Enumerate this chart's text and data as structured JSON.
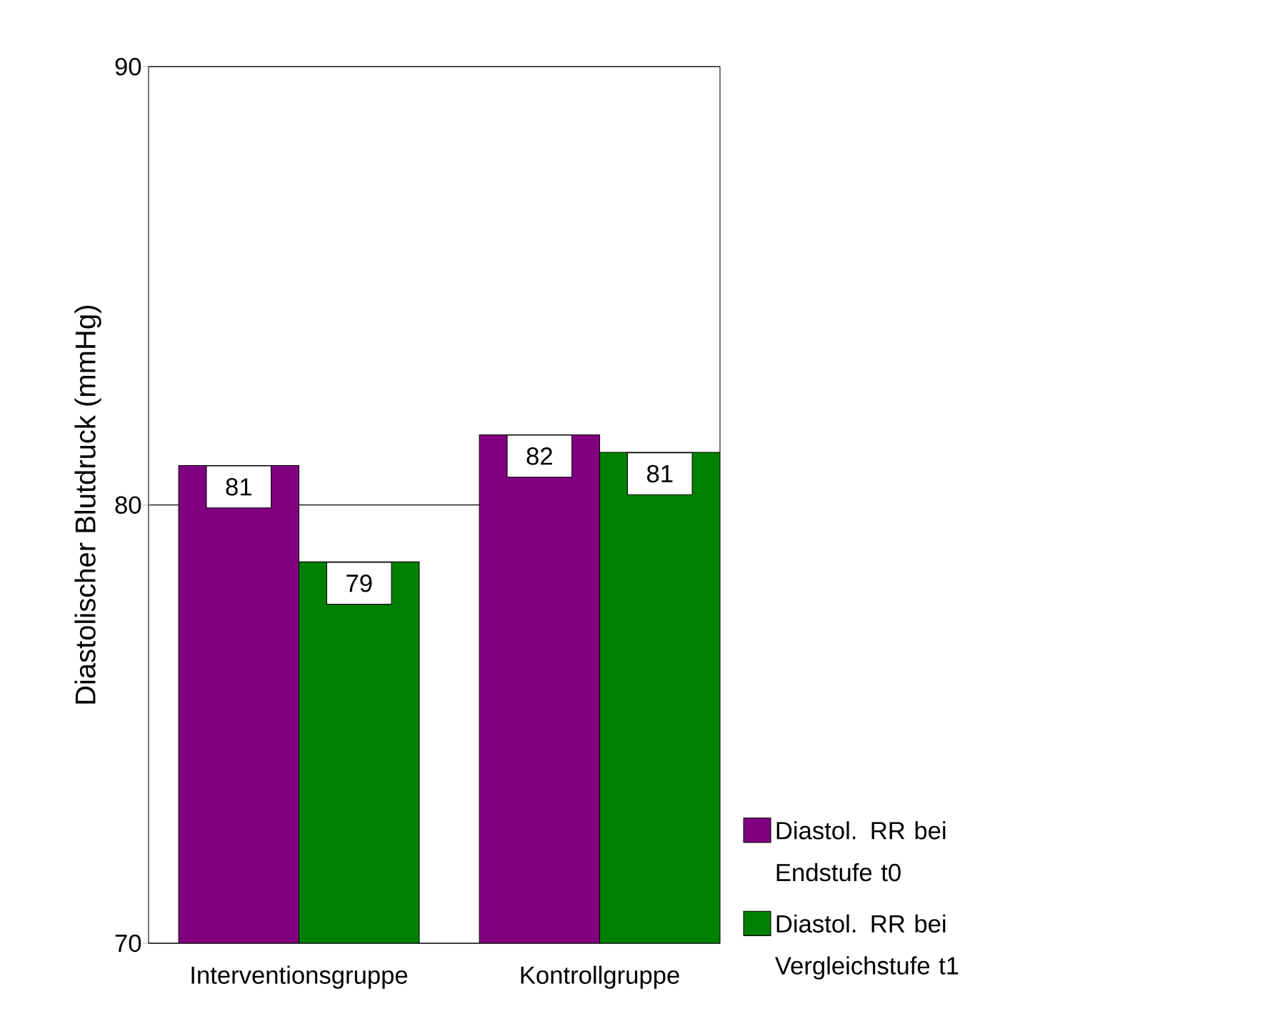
{
  "chart_data": {
    "type": "bar",
    "ylabel": "Diastolischer Blutdruck (mmHg)",
    "categories": [
      "Interventionsgruppe",
      "Kontrollgruppe"
    ],
    "series": [
      {
        "name": "Diastol. RR bei Endstufe t0",
        "color": "#800080",
        "values": [
          80.9,
          81.6
        ],
        "value_labels": [
          "81",
          "82"
        ]
      },
      {
        "name": "Diastol. RR bei Vergleichstufe t1",
        "color": "#008000",
        "values": [
          78.7,
          81.2
        ],
        "value_labels": [
          "79",
          "81"
        ]
      }
    ],
    "ylim": [
      70,
      90
    ],
    "yticks": [
      70,
      80,
      90
    ],
    "grid": "y",
    "legend": "right"
  }
}
